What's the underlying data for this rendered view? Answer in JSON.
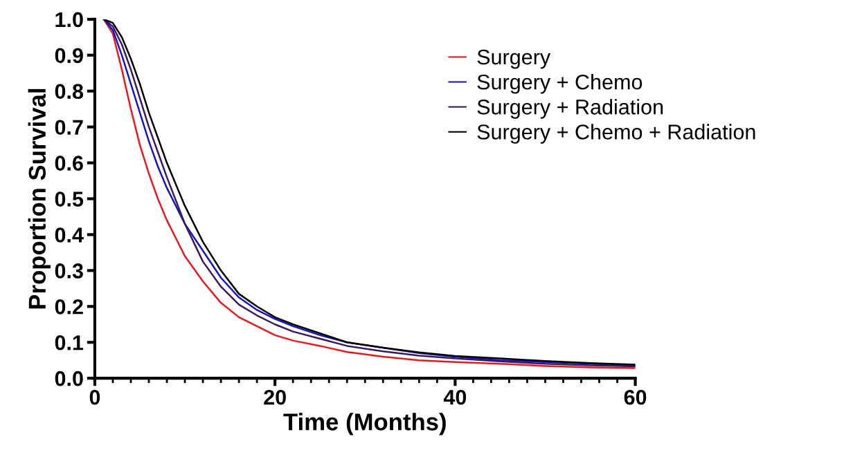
{
  "chart_data": {
    "type": "line",
    "xlabel": "Time (Months)",
    "ylabel": "Proportion Survival",
    "xlim": [
      0,
      60
    ],
    "xticks": [
      0,
      20,
      40,
      60
    ],
    "ylim": [
      0,
      1.0
    ],
    "yticks": [
      {
        "value": 0,
        "label": "0.0"
      },
      0.1,
      0.2,
      0.3,
      0.4,
      0.5,
      0.6,
      0.7,
      0.8,
      0.9,
      {
        "value": 1.0,
        "label": "1.0"
      }
    ],
    "x": [
      1,
      2,
      3,
      4,
      5,
      6,
      7,
      8,
      10,
      12,
      14,
      16,
      18,
      20,
      22,
      25,
      28,
      32,
      36,
      40,
      45,
      50,
      55,
      60
    ],
    "legend": "top right",
    "grid": false,
    "marker": "none",
    "line_style": "solid",
    "series": [
      {
        "name": "Surgery",
        "color": "#e8191e",
        "values": [
          1.0,
          0.96,
          0.86,
          0.75,
          0.65,
          0.57,
          0.5,
          0.44,
          0.34,
          0.27,
          0.21,
          0.17,
          0.145,
          0.12,
          0.105,
          0.09,
          0.073,
          0.06,
          0.05,
          0.045,
          0.04,
          0.034,
          0.03,
          0.028
        ]
      },
      {
        "name": "Surgery + Chemo",
        "color": "#1515c8",
        "values": [
          1.0,
          0.97,
          0.9,
          0.82,
          0.74,
          0.66,
          0.59,
          0.53,
          0.43,
          0.355,
          0.28,
          0.225,
          0.19,
          0.165,
          0.145,
          0.12,
          0.1,
          0.085,
          0.07,
          0.06,
          0.05,
          0.045,
          0.04,
          0.035
        ]
      },
      {
        "name": "Surgery + Radiation",
        "color": "#3a1a5e",
        "values": [
          1.0,
          0.98,
          0.93,
          0.86,
          0.78,
          0.7,
          0.63,
          0.56,
          0.43,
          0.325,
          0.255,
          0.205,
          0.175,
          0.15,
          0.13,
          0.11,
          0.09,
          0.075,
          0.063,
          0.055,
          0.047,
          0.04,
          0.036,
          0.033
        ]
      },
      {
        "name": "Surgery + Chemo + Radiation",
        "color": "#000000",
        "values": [
          1.0,
          0.99,
          0.95,
          0.89,
          0.82,
          0.74,
          0.67,
          0.6,
          0.48,
          0.38,
          0.3,
          0.235,
          0.2,
          0.17,
          0.15,
          0.125,
          0.1,
          0.085,
          0.072,
          0.062,
          0.055,
          0.048,
          0.042,
          0.038
        ]
      }
    ]
  }
}
